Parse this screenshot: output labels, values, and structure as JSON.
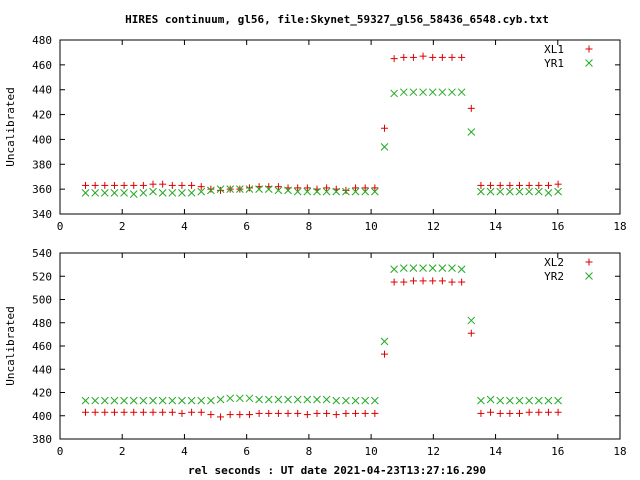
{
  "figure": {
    "title": "HIRES continuum, gl56, file:Skynet_59327_gl56_58436_6548.cyb.txt",
    "xlabel": "rel seconds : UT date 2021-04-23T13:27:16.290"
  },
  "chart_data": [
    {
      "type": "scatter",
      "ylabel": "Uncalibrated",
      "xlim": [
        0,
        18
      ],
      "ylim": [
        340,
        480
      ],
      "xticks": [
        0,
        2,
        4,
        6,
        8,
        10,
        12,
        14,
        16,
        18
      ],
      "yticks": [
        340,
        360,
        380,
        400,
        420,
        440,
        460,
        480
      ],
      "grid": false,
      "legend_position": "top-right",
      "series": [
        {
          "name": "XL1",
          "marker": "plus",
          "color": "#dd0000",
          "x": [
            0.82,
            1.13,
            1.44,
            1.75,
            2.06,
            2.37,
            2.68,
            2.99,
            3.3,
            3.61,
            3.92,
            4.23,
            4.54,
            4.85,
            5.16,
            5.47,
            5.78,
            6.09,
            6.4,
            6.71,
            7.02,
            7.33,
            7.64,
            7.95,
            8.26,
            8.57,
            8.88,
            9.19,
            9.5,
            9.81,
            10.12,
            10.43,
            10.74,
            11.05,
            11.36,
            11.67,
            11.98,
            12.29,
            12.6,
            12.91,
            13.22,
            13.53,
            13.84,
            14.15,
            14.46,
            14.77,
            15.08,
            15.39,
            15.7,
            16.01
          ],
          "y": [
            363,
            363,
            363,
            363,
            363,
            363,
            363,
            364,
            364,
            363,
            363,
            363,
            362,
            360,
            359,
            360,
            360,
            361,
            362,
            362,
            362,
            361,
            361,
            361,
            360,
            361,
            360,
            359,
            361,
            361,
            361,
            409,
            465,
            466,
            466,
            467,
            466,
            466,
            466,
            466,
            425,
            363,
            363,
            363,
            363,
            363,
            363,
            363,
            363,
            364
          ]
        },
        {
          "name": "YR1",
          "marker": "cross",
          "color": "#22aa22",
          "x": [
            0.82,
            1.13,
            1.44,
            1.75,
            2.06,
            2.37,
            2.68,
            2.99,
            3.3,
            3.61,
            3.92,
            4.23,
            4.54,
            4.85,
            5.16,
            5.47,
            5.78,
            6.09,
            6.4,
            6.71,
            7.02,
            7.33,
            7.64,
            7.95,
            8.26,
            8.57,
            8.88,
            9.19,
            9.5,
            9.81,
            10.12,
            10.43,
            10.74,
            11.05,
            11.36,
            11.67,
            11.98,
            12.29,
            12.6,
            12.91,
            13.22,
            13.53,
            13.84,
            14.15,
            14.46,
            14.77,
            15.08,
            15.39,
            15.7,
            16.01
          ],
          "y": [
            357,
            357,
            357,
            357,
            357,
            356,
            357,
            358,
            357,
            357,
            357,
            357,
            358,
            359,
            360,
            360,
            360,
            360,
            360,
            360,
            359,
            359,
            358,
            358,
            358,
            358,
            358,
            358,
            358,
            358,
            358,
            394,
            437,
            438,
            438,
            438,
            438,
            438,
            438,
            438,
            406,
            358,
            358,
            358,
            358,
            358,
            358,
            358,
            357,
            358
          ]
        }
      ]
    },
    {
      "type": "scatter",
      "ylabel": "Uncalibrated",
      "xlim": [
        0,
        18
      ],
      "ylim": [
        380,
        540
      ],
      "xticks": [
        0,
        2,
        4,
        6,
        8,
        10,
        12,
        14,
        16,
        18
      ],
      "yticks": [
        380,
        400,
        420,
        440,
        460,
        480,
        500,
        520,
        540
      ],
      "grid": false,
      "legend_position": "top-right",
      "series": [
        {
          "name": "XL2",
          "marker": "plus",
          "color": "#dd0000",
          "x": [
            0.82,
            1.13,
            1.44,
            1.75,
            2.06,
            2.37,
            2.68,
            2.99,
            3.3,
            3.61,
            3.92,
            4.23,
            4.54,
            4.85,
            5.16,
            5.47,
            5.78,
            6.09,
            6.4,
            6.71,
            7.02,
            7.33,
            7.64,
            7.95,
            8.26,
            8.57,
            8.88,
            9.19,
            9.5,
            9.81,
            10.12,
            10.43,
            10.74,
            11.05,
            11.36,
            11.67,
            11.98,
            12.29,
            12.6,
            12.91,
            13.22,
            13.53,
            13.84,
            14.15,
            14.46,
            14.77,
            15.08,
            15.39,
            15.7,
            16.01
          ],
          "y": [
            403,
            403,
            403,
            403,
            403,
            403,
            403,
            403,
            403,
            403,
            402,
            403,
            403,
            401,
            399,
            401,
            401,
            401,
            402,
            402,
            402,
            402,
            402,
            401,
            402,
            402,
            401,
            402,
            402,
            402,
            402,
            453,
            515,
            515,
            516,
            516,
            516,
            516,
            515,
            515,
            471,
            402,
            403,
            402,
            402,
            402,
            403,
            403,
            403,
            403
          ]
        },
        {
          "name": "YR2",
          "marker": "cross",
          "color": "#22aa22",
          "x": [
            0.82,
            1.13,
            1.44,
            1.75,
            2.06,
            2.37,
            2.68,
            2.99,
            3.3,
            3.61,
            3.92,
            4.23,
            4.54,
            4.85,
            5.16,
            5.47,
            5.78,
            6.09,
            6.4,
            6.71,
            7.02,
            7.33,
            7.64,
            7.95,
            8.26,
            8.57,
            8.88,
            9.19,
            9.5,
            9.81,
            10.12,
            10.43,
            10.74,
            11.05,
            11.36,
            11.67,
            11.98,
            12.29,
            12.6,
            12.91,
            13.22,
            13.53,
            13.84,
            14.15,
            14.46,
            14.77,
            15.08,
            15.39,
            15.7,
            16.01
          ],
          "y": [
            413,
            413,
            413,
            413,
            413,
            413,
            413,
            413,
            413,
            413,
            413,
            413,
            413,
            413,
            414,
            415,
            415,
            415,
            414,
            414,
            414,
            414,
            414,
            414,
            414,
            414,
            413,
            413,
            413,
            413,
            413,
            464,
            526,
            527,
            527,
            527,
            527,
            527,
            527,
            526,
            482,
            413,
            414,
            413,
            413,
            413,
            413,
            413,
            413,
            413
          ]
        }
      ]
    }
  ]
}
